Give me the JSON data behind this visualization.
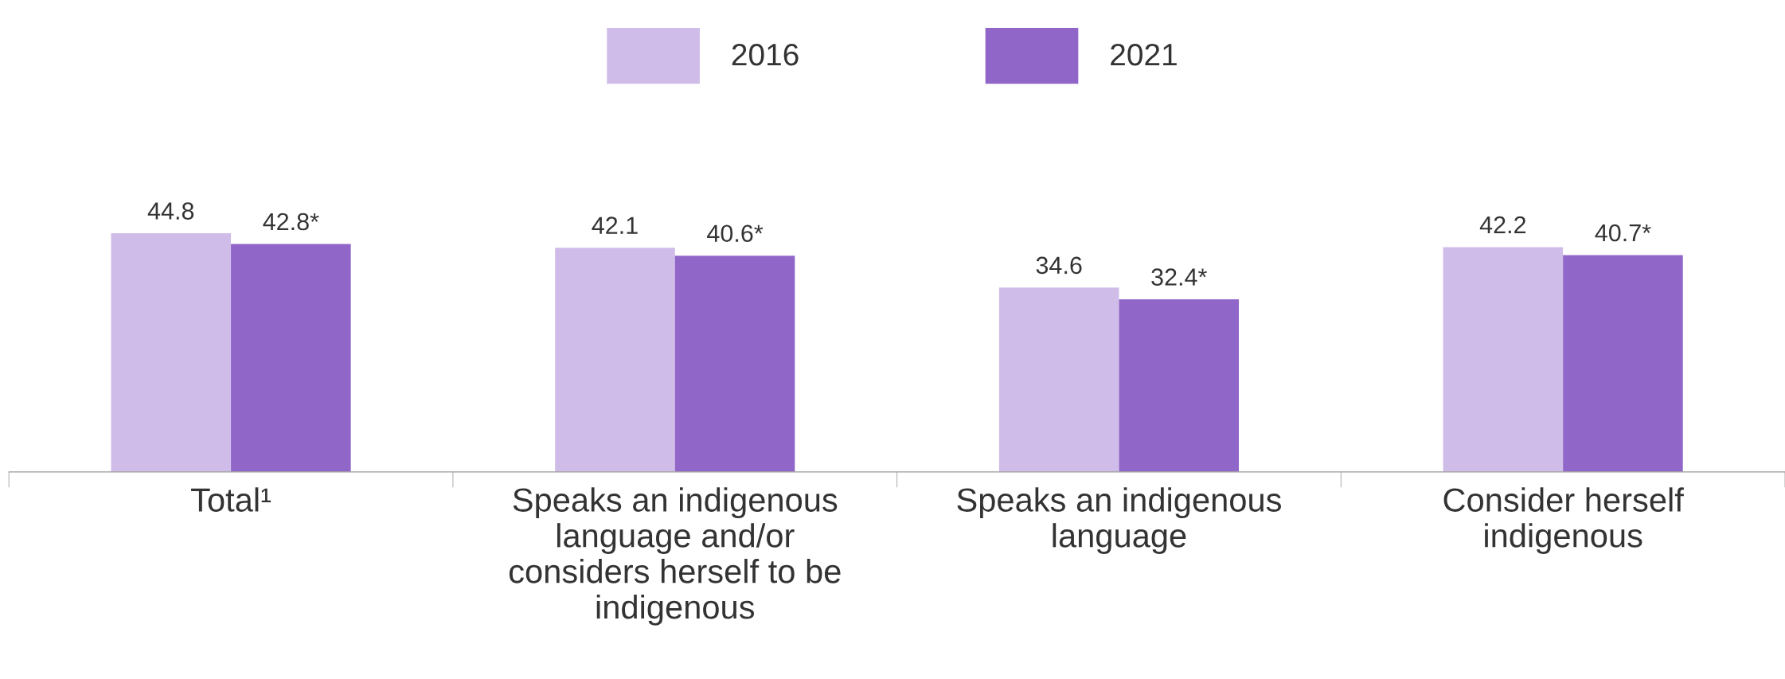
{
  "chart_data": {
    "type": "bar",
    "categories": [
      "Total¹",
      "Speaks an indigenous\nlanguage and/or\nconsiders herself to be\nindigenous",
      "Speaks an indigenous\nlanguage",
      "Consider herself\nindigenous"
    ],
    "series": [
      {
        "name": "2016",
        "color": "#d0bce8",
        "values": [
          44.8,
          42.1,
          34.6,
          42.2
        ],
        "value_labels": [
          "44.8",
          "42.1",
          "34.6",
          "42.2"
        ]
      },
      {
        "name": "2021",
        "color": "#9066c8",
        "values": [
          42.8,
          40.6,
          32.4,
          40.7
        ],
        "value_labels": [
          "42.8*",
          "40.6*",
          "32.4*",
          "40.7*"
        ]
      }
    ],
    "tick_labels": "x",
    "legend": "top",
    "grid": false
  }
}
